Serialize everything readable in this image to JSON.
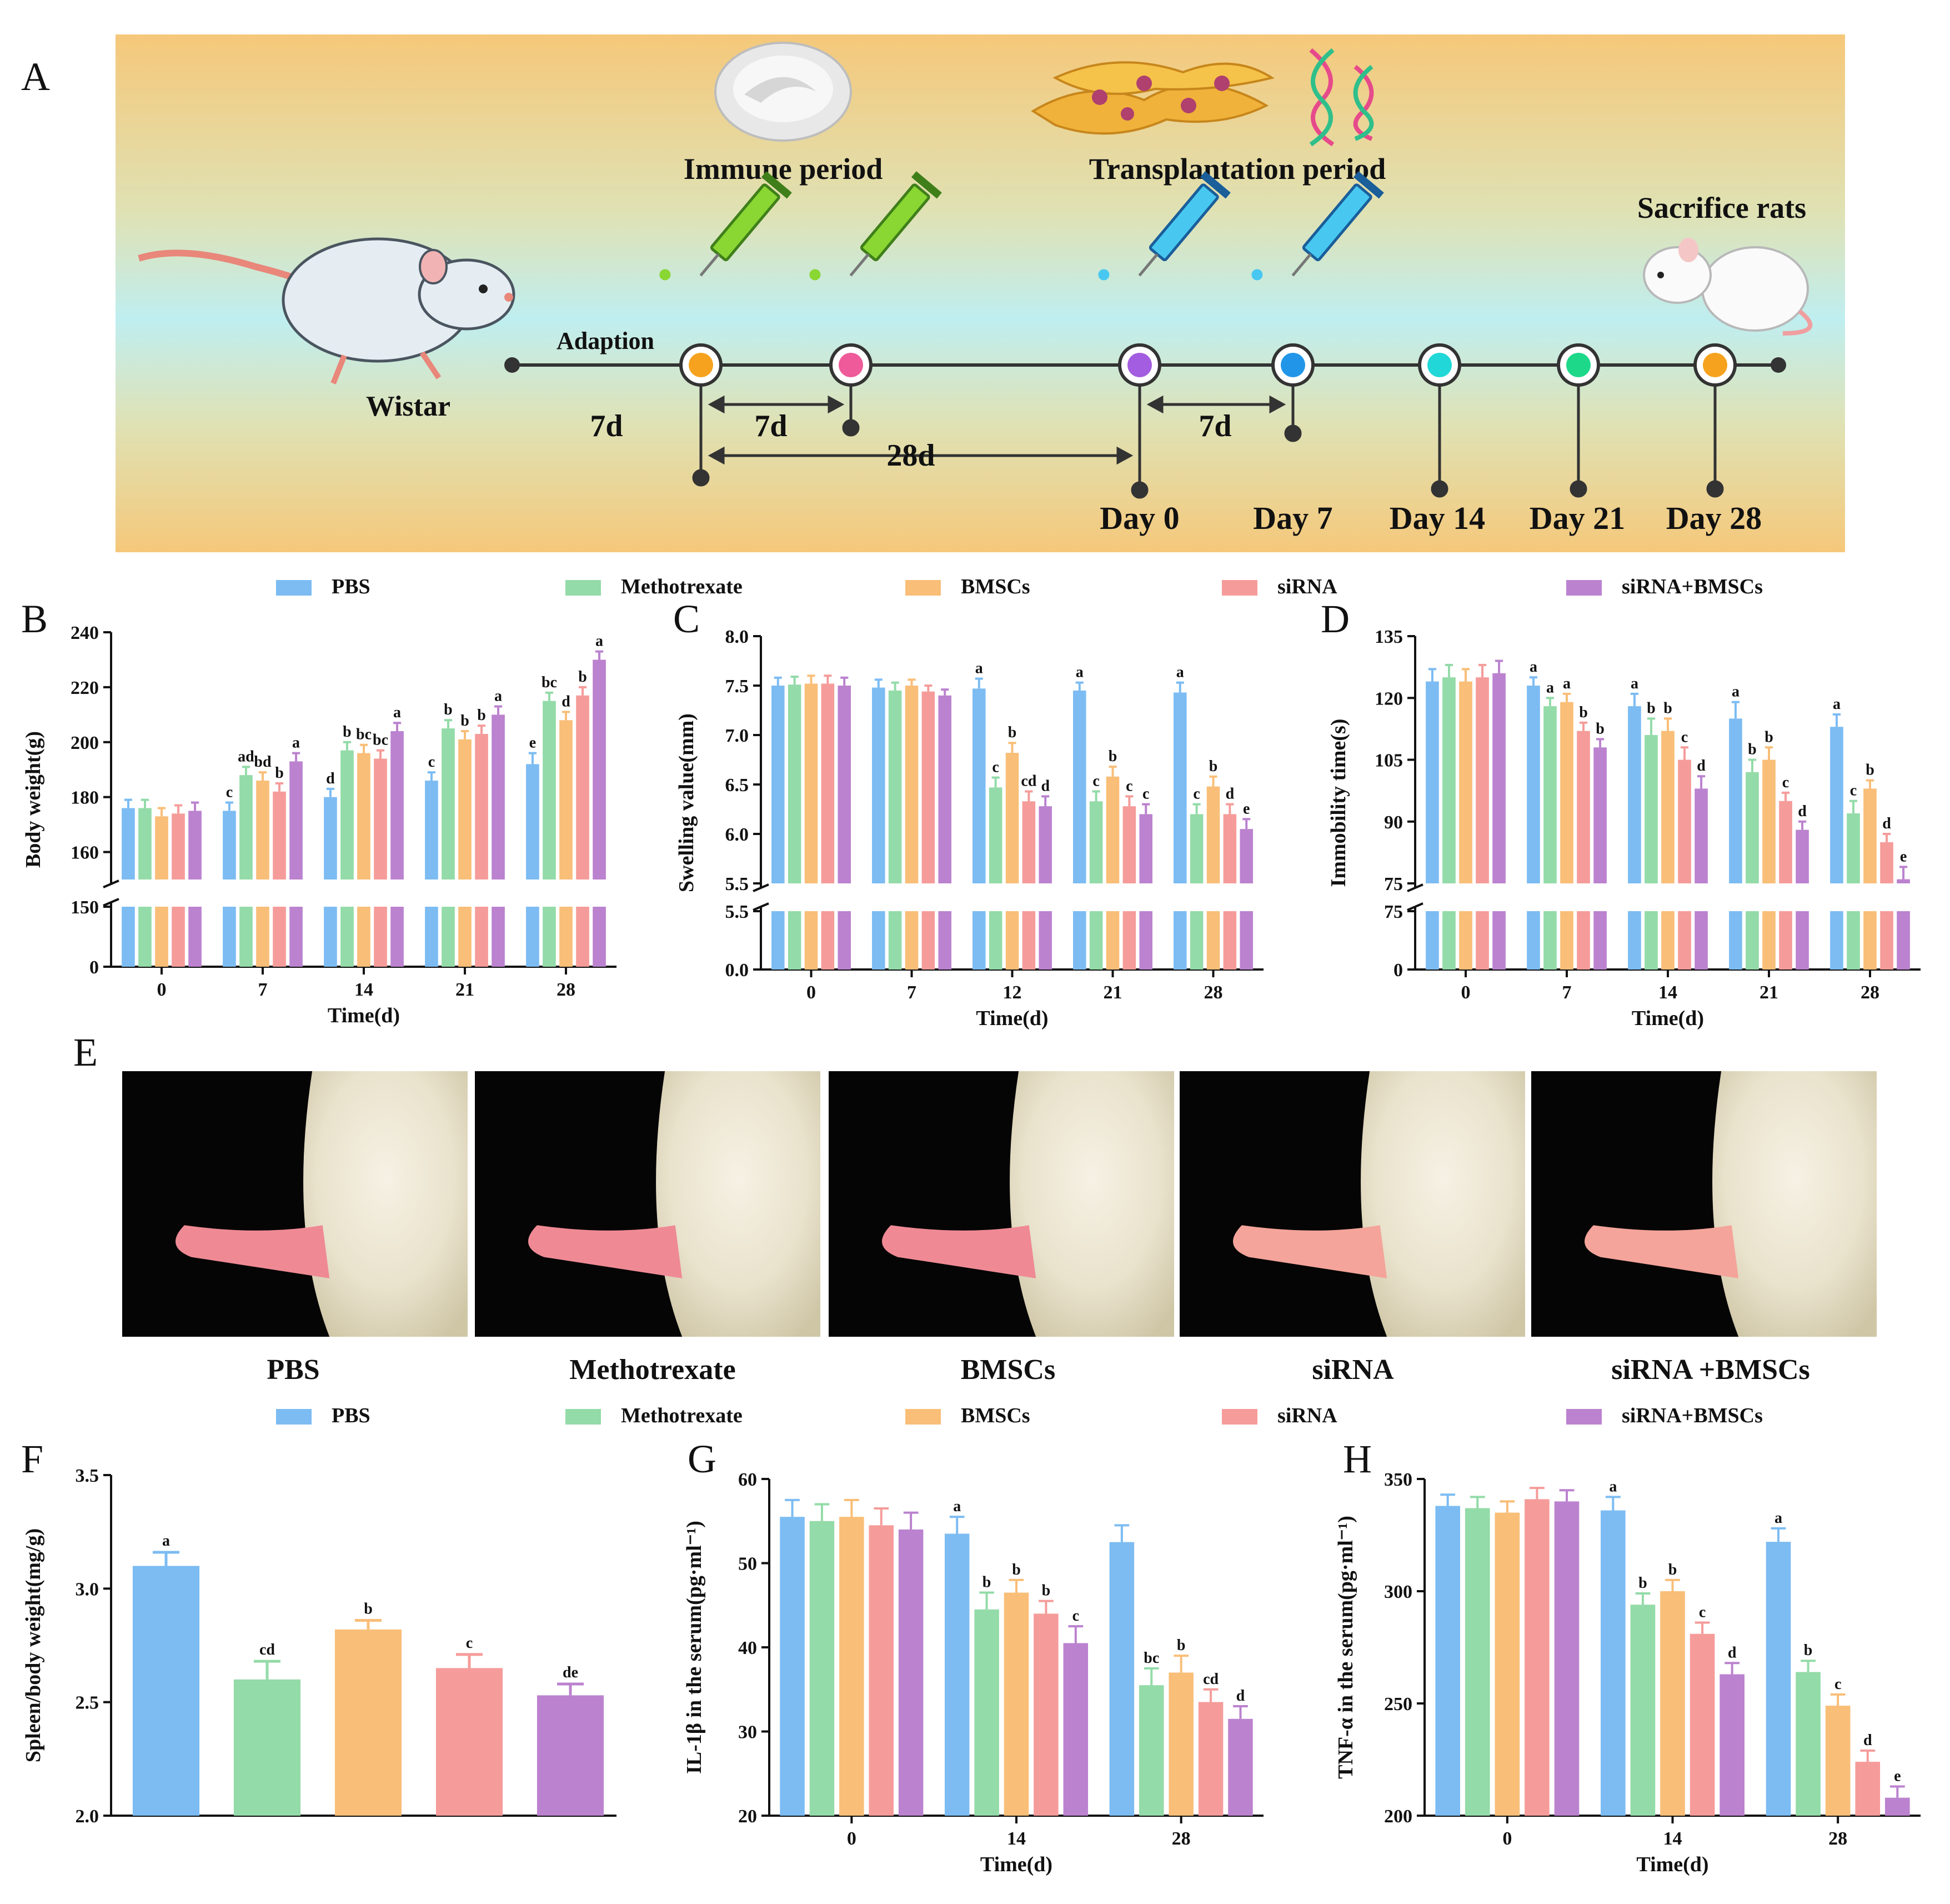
{
  "panel_labels": [
    "A",
    "B",
    "C",
    "D",
    "E",
    "F",
    "G",
    "H"
  ],
  "colors": {
    "PBS": "#7cbcf3",
    "Methotrexate": "#93dba8",
    "BMSCs": "#f9be78",
    "siRNA": "#f59c9a",
    "siRNA+BMSCs": "#bb82cf",
    "banner_top": "#f5c87a",
    "banner_mid": "#bfeef0"
  },
  "legend": [
    "PBS",
    "Methotrexate",
    "BMSCs",
    "siRNA",
    "siRNA+BMSCs"
  ],
  "timeline": {
    "immune_period": "Immune period",
    "transplantation_period": "Transplantation period",
    "sacrifice": "Sacrifice rats",
    "wistar": "Wistar",
    "adaption": "Adaption",
    "interval_7d_a": "7d",
    "interval_7d_b": "7d",
    "interval_28d": "28d",
    "interval_7d_c": "7d",
    "days": [
      "Day 0",
      "Day 7",
      "Day 14",
      "Day 21",
      "Day 28"
    ],
    "dot_colors": [
      "#f6a21e",
      "#ee5a9a",
      "#a35de0",
      "#2196e8",
      "#22d7d7",
      "#1ed88a",
      "#f6a21e"
    ]
  },
  "photos": {
    "labels": [
      "PBS",
      "Methotrexate",
      "BMSCs",
      "siRNA",
      "siRNA +BMSCs"
    ]
  },
  "chart_data": [
    {
      "id": "B",
      "type": "bar",
      "title": "",
      "ylabel": "Body weight(g)",
      "xlabel": "Time(d)",
      "categories": [
        "0",
        "7",
        "14",
        "21",
        "28"
      ],
      "ylim_upper": [
        150,
        240
      ],
      "ylim_lower": [
        0,
        150
      ],
      "yticks_upper": [
        "160",
        "180",
        "200",
        "220",
        "240"
      ],
      "yticks_lower": [
        "0",
        "150"
      ],
      "series": [
        {
          "name": "PBS",
          "values": [
            176,
            175,
            180,
            186,
            192
          ],
          "errors": [
            3,
            3,
            3,
            3,
            4
          ],
          "labels": [
            "",
            "c",
            "d",
            "c",
            "e"
          ]
        },
        {
          "name": "Methotrexate",
          "values": [
            176,
            188,
            197,
            205,
            215
          ],
          "errors": [
            3,
            3,
            3,
            3,
            3
          ],
          "labels": [
            "",
            "ad",
            "b",
            "b",
            "bc"
          ]
        },
        {
          "name": "BMSCs",
          "values": [
            173,
            186,
            196,
            201,
            208
          ],
          "errors": [
            3,
            3,
            3,
            3,
            3
          ],
          "labels": [
            "",
            "bd",
            "bc",
            "b",
            "d"
          ]
        },
        {
          "name": "siRNA",
          "values": [
            174,
            182,
            194,
            203,
            217
          ],
          "errors": [
            3,
            3,
            3,
            3,
            3
          ],
          "labels": [
            "",
            "b",
            "bc",
            "b",
            "b"
          ]
        },
        {
          "name": "siRNA+BMSCs",
          "values": [
            175,
            193,
            204,
            210,
            230
          ],
          "errors": [
            3,
            3,
            3,
            3,
            3
          ],
          "labels": [
            "",
            "a",
            "a",
            "a",
            "a"
          ]
        }
      ]
    },
    {
      "id": "C",
      "type": "bar",
      "title": "",
      "ylabel": "Swelling value(mm)",
      "xlabel": "Time(d)",
      "categories": [
        "0",
        "7",
        "12",
        "21",
        "28"
      ],
      "ylim_upper": [
        5.5,
        8.0
      ],
      "ylim_lower": [
        0,
        5.5
      ],
      "yticks_upper": [
        "5.5",
        "6.0",
        "6.5",
        "7.0",
        "7.5",
        "8.0"
      ],
      "yticks_lower": [
        "0.0",
        "5.5"
      ],
      "series": [
        {
          "name": "PBS",
          "values": [
            7.5,
            7.48,
            7.47,
            7.45,
            7.43
          ],
          "errors": [
            0.08,
            0.08,
            0.1,
            0.08,
            0.1
          ],
          "labels": [
            "",
            "",
            "a",
            "a",
            "a"
          ]
        },
        {
          "name": "Methotrexate",
          "values": [
            7.51,
            7.45,
            6.47,
            6.33,
            6.2
          ],
          "errors": [
            0.08,
            0.08,
            0.1,
            0.1,
            0.1
          ],
          "labels": [
            "",
            "",
            "c",
            "c",
            "c"
          ]
        },
        {
          "name": "BMSCs",
          "values": [
            7.52,
            7.5,
            6.82,
            6.58,
            6.48
          ],
          "errors": [
            0.08,
            0.06,
            0.1,
            0.1,
            0.1
          ],
          "labels": [
            "",
            "",
            "b",
            "b",
            "b"
          ]
        },
        {
          "name": "siRNA",
          "values": [
            7.52,
            7.44,
            6.33,
            6.28,
            6.2
          ],
          "errors": [
            0.08,
            0.06,
            0.1,
            0.1,
            0.1
          ],
          "labels": [
            "",
            "",
            "cd",
            "c",
            "d"
          ]
        },
        {
          "name": "siRNA+BMSCs",
          "values": [
            7.5,
            7.4,
            6.28,
            6.2,
            6.05
          ],
          "errors": [
            0.08,
            0.06,
            0.1,
            0.1,
            0.1
          ],
          "labels": [
            "",
            "",
            "d",
            "c",
            "e"
          ]
        }
      ]
    },
    {
      "id": "D",
      "type": "bar",
      "title": "",
      "ylabel": "Immobility time(s)",
      "xlabel": "Time(d)",
      "categories": [
        "0",
        "7",
        "14",
        "21",
        "28"
      ],
      "ylim_upper": [
        75,
        135
      ],
      "ylim_lower": [
        0,
        75
      ],
      "yticks_upper": [
        "75",
        "90",
        "105",
        "120",
        "135"
      ],
      "yticks_lower": [
        "0",
        "75"
      ],
      "series": [
        {
          "name": "PBS",
          "values": [
            124,
            123,
            118,
            115,
            113
          ],
          "errors": [
            3,
            2,
            3,
            4,
            3
          ],
          "labels": [
            "",
            "a",
            "a",
            "a",
            "a"
          ]
        },
        {
          "name": "Methotrexate",
          "values": [
            125,
            118,
            111,
            102,
            92
          ],
          "errors": [
            3,
            2,
            4,
            3,
            3
          ],
          "labels": [
            "",
            "a",
            "b",
            "b",
            "c"
          ]
        },
        {
          "name": "BMSCs",
          "values": [
            124,
            119,
            112,
            105,
            98
          ],
          "errors": [
            3,
            2,
            3,
            3,
            2
          ],
          "labels": [
            "",
            "a",
            "b",
            "b",
            "b"
          ]
        },
        {
          "name": "siRNA",
          "values": [
            125,
            112,
            105,
            95,
            85
          ],
          "errors": [
            3,
            2,
            3,
            2,
            2
          ],
          "labels": [
            "",
            "b",
            "c",
            "c",
            "d"
          ]
        },
        {
          "name": "siRNA+BMSCs",
          "values": [
            126,
            108,
            98,
            88,
            76
          ],
          "errors": [
            3,
            2,
            3,
            2,
            3
          ],
          "labels": [
            "",
            "b",
            "d",
            "d",
            "e"
          ]
        }
      ]
    },
    {
      "id": "F",
      "type": "bar",
      "title": "",
      "ylabel": "Spleen/body weight(mg/g)",
      "xlabel": "",
      "categories": [
        "PBS",
        "Methotrexate",
        "BMSCs",
        "siRNA",
        "siRNA+BMSCs"
      ],
      "ylim": [
        2.0,
        3.5
      ],
      "yticks": [
        "2.0",
        "2.5",
        "3.0",
        "3.5"
      ],
      "values": [
        3.1,
        2.6,
        2.82,
        2.65,
        2.53
      ],
      "errors": [
        0.06,
        0.08,
        0.04,
        0.06,
        0.05
      ],
      "labels": [
        "a",
        "cd",
        "b",
        "c",
        "de"
      ]
    },
    {
      "id": "G",
      "type": "bar",
      "title": "",
      "ylabel": "IL-1β in the serum(pg·ml⁻¹)",
      "xlabel": "Time(d)",
      "categories": [
        "0",
        "14",
        "28"
      ],
      "ylim": [
        20,
        60
      ],
      "yticks": [
        "20",
        "30",
        "40",
        "50",
        "60"
      ],
      "series": [
        {
          "name": "PBS",
          "values": [
            55.5,
            53.5,
            52.5
          ],
          "errors": [
            2,
            2,
            2
          ],
          "labels": [
            "",
            "a",
            ""
          ]
        },
        {
          "name": "Methotrexate",
          "values": [
            55,
            44.5,
            35.5
          ],
          "errors": [
            2,
            2,
            2
          ],
          "labels": [
            "",
            "b",
            "bc"
          ]
        },
        {
          "name": "BMSCs",
          "values": [
            55.5,
            46.5,
            37
          ],
          "errors": [
            2,
            1.5,
            2
          ],
          "labels": [
            "",
            "b",
            "b"
          ]
        },
        {
          "name": "siRNA",
          "values": [
            54.5,
            44,
            33.5
          ],
          "errors": [
            2,
            1.5,
            1.5
          ],
          "labels": [
            "",
            "b",
            "cd"
          ]
        },
        {
          "name": "siRNA+BMSCs",
          "values": [
            54,
            40.5,
            31.5
          ],
          "errors": [
            2,
            2,
            1.5
          ],
          "labels": [
            "",
            "c",
            "d"
          ]
        }
      ]
    },
    {
      "id": "H",
      "type": "bar",
      "title": "",
      "ylabel": "TNF-α in the serum(pg·ml⁻¹)",
      "xlabel": "Time(d)",
      "categories": [
        "0",
        "14",
        "28"
      ],
      "ylim": [
        200,
        350
      ],
      "yticks": [
        "200",
        "250",
        "300",
        "350"
      ],
      "series": [
        {
          "name": "PBS",
          "values": [
            338,
            336,
            322
          ],
          "errors": [
            5,
            6,
            6
          ],
          "labels": [
            "",
            "a",
            "a"
          ]
        },
        {
          "name": "Methotrexate",
          "values": [
            337,
            294,
            264
          ],
          "errors": [
            5,
            5,
            5
          ],
          "labels": [
            "",
            "b",
            "b"
          ]
        },
        {
          "name": "BMSCs",
          "values": [
            335,
            300,
            249
          ],
          "errors": [
            5,
            5,
            5
          ],
          "labels": [
            "",
            "b",
            "c"
          ]
        },
        {
          "name": "siRNA",
          "values": [
            341,
            281,
            224
          ],
          "errors": [
            5,
            5,
            5
          ],
          "labels": [
            "",
            "c",
            "d"
          ]
        },
        {
          "name": "siRNA+BMSCs",
          "values": [
            340,
            263,
            208
          ],
          "errors": [
            5,
            5,
            5
          ],
          "labels": [
            "",
            "d",
            "e"
          ]
        }
      ]
    }
  ]
}
